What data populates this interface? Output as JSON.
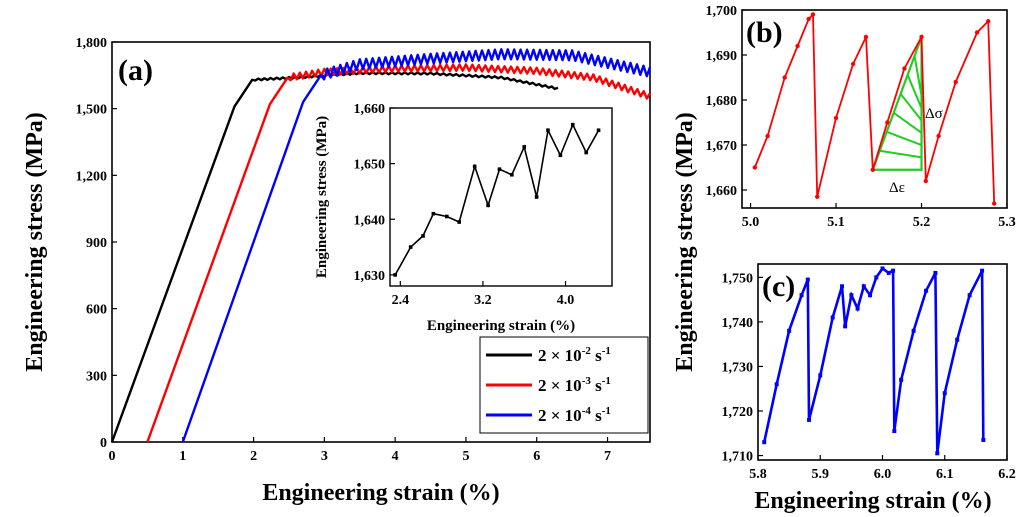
{
  "chart_data": [
    {
      "panel_label": "(a)",
      "type": "line",
      "xlabel": "Engineering strain (%)",
      "ylabel": "Engineering stress (MPa)",
      "xlim": [
        0,
        7.6
      ],
      "ylim": [
        0,
        1800
      ],
      "xticks": [
        "0",
        "1",
        "2",
        "3",
        "4",
        "5",
        "6",
        "7"
      ],
      "yticks": [
        "0",
        "300",
        "600",
        "900",
        "1,200",
        "1,500",
        "1,800"
      ],
      "legend": {
        "position": "bottom-right",
        "entries": [
          {
            "prefix": "2 × 10",
            "exp": "-2",
            "unit": "s",
            "uexp": "-1",
            "color": "#000000"
          },
          {
            "prefix": "2 × 10",
            "exp": "-3",
            "unit": "s",
            "uexp": "-1",
            "color": "#ff0000"
          },
          {
            "prefix": "2 × 10",
            "exp": "-4",
            "unit": "s",
            "uexp": "-1",
            "color": "#0000ff"
          }
        ]
      },
      "series": [
        {
          "name": "2e-2",
          "color": "#000000",
          "start": 0.0,
          "yield_x": 1.98,
          "yield_y": 1630,
          "end_x": 6.3,
          "end_y": 1590,
          "plateau": [
            [
              2.5,
              1638
            ],
            [
              3.5,
              1660
            ],
            [
              4.5,
              1658
            ],
            [
              5.5,
              1640
            ],
            [
              6.3,
              1590
            ]
          ],
          "amp": 4
        },
        {
          "name": "2e-3",
          "color": "#ff0000",
          "start": 0.5,
          "yield_x": 2.48,
          "yield_y": 1640,
          "end_x": 7.6,
          "end_y": 1555,
          "plateau": [
            [
              3.0,
              1665
            ],
            [
              4.0,
              1680
            ],
            [
              5.0,
              1685
            ],
            [
              6.0,
              1670
            ],
            [
              6.8,
              1640
            ],
            [
              7.6,
              1555
            ]
          ],
          "amp": 14
        },
        {
          "name": "2e-4",
          "color": "#0000ff",
          "start": 1.0,
          "yield_x": 2.95,
          "yield_y": 1650,
          "end_x": 7.6,
          "end_y": 1665,
          "plateau": [
            [
              3.5,
              1700
            ],
            [
              4.5,
              1725
            ],
            [
              5.5,
              1745
            ],
            [
              6.5,
              1740
            ],
            [
              7.6,
              1665
            ]
          ],
          "amp": 22
        }
      ]
    },
    {
      "panel_label": "inset",
      "type": "line",
      "xlabel": "Engineering strain (%)",
      "ylabel": "Engineering stress (MPa)",
      "xlim": [
        2.3,
        4.45
      ],
      "ylim": [
        1628,
        1660
      ],
      "xticks": [
        "2.4",
        "3.2",
        "4.0"
      ],
      "yticks": [
        "1,630",
        "1,640",
        "1,650",
        "1,660"
      ],
      "color": "#000000",
      "x": [
        2.35,
        2.5,
        2.62,
        2.72,
        2.85,
        2.97,
        3.12,
        3.25,
        3.36,
        3.48,
        3.6,
        3.72,
        3.83,
        3.95,
        4.07,
        4.2,
        4.32
      ],
      "y": [
        1630,
        1635,
        1637,
        1641,
        1640.5,
        1639.5,
        1649.5,
        1642.5,
        1649,
        1648,
        1653,
        1644,
        1656,
        1651.5,
        1657,
        1652,
        1656
      ]
    },
    {
      "panel_label": "(b)",
      "type": "line",
      "xlim": [
        4.99,
        5.3
      ],
      "ylim": [
        1656,
        1700
      ],
      "xticks": [
        "5.0",
        "5.1",
        "5.2",
        "5.3"
      ],
      "yticks": [
        "1,660",
        "1,670",
        "1,680",
        "1,690",
        "1,700"
      ],
      "color": "#ff0000",
      "x": [
        5.005,
        5.02,
        5.04,
        5.055,
        5.068,
        5.073,
        5.078,
        5.1,
        5.12,
        5.135,
        5.143,
        5.16,
        5.18,
        5.2,
        5.205,
        5.22,
        5.24,
        5.265,
        5.278,
        5.285
      ],
      "y": [
        1665,
        1672,
        1685,
        1692,
        1698,
        1699,
        1658.5,
        1676,
        1688,
        1694,
        1664.5,
        1675,
        1687,
        1694,
        1662,
        1672,
        1684,
        1695,
        1697.5,
        1657
      ],
      "annotations": {
        "delta_sigma": "Δσ",
        "delta_epsilon": "Δε"
      }
    },
    {
      "panel_label": "(c)",
      "type": "line",
      "xlabel": "Engineering strain (%)",
      "ylabel": "Engineering stress (MPa)",
      "xlim": [
        5.8,
        6.2
      ],
      "ylim": [
        1709,
        1753
      ],
      "xticks": [
        "5.8",
        "5.9",
        "6.0",
        "6.1",
        "6.2"
      ],
      "yticks": [
        "1,710",
        "1,720",
        "1,730",
        "1,740",
        "1,750"
      ],
      "color": "#0000ff",
      "x": [
        5.81,
        5.83,
        5.85,
        5.87,
        5.88,
        5.882,
        5.9,
        5.92,
        5.935,
        5.94,
        5.95,
        5.96,
        5.97,
        5.98,
        5.99,
        6.0,
        6.01,
        6.017,
        6.019,
        6.03,
        6.05,
        6.07,
        6.085,
        6.088,
        6.1,
        6.12,
        6.14,
        6.16,
        6.162
      ],
      "y": [
        1713,
        1726,
        1738,
        1746,
        1749.5,
        1718,
        1728,
        1741,
        1748,
        1739,
        1746,
        1743,
        1748,
        1746,
        1750,
        1752,
        1751,
        1751.5,
        1715.5,
        1727,
        1738,
        1747,
        1751,
        1710.5,
        1724,
        1736,
        1746,
        1751.5,
        1713.5
      ]
    }
  ]
}
